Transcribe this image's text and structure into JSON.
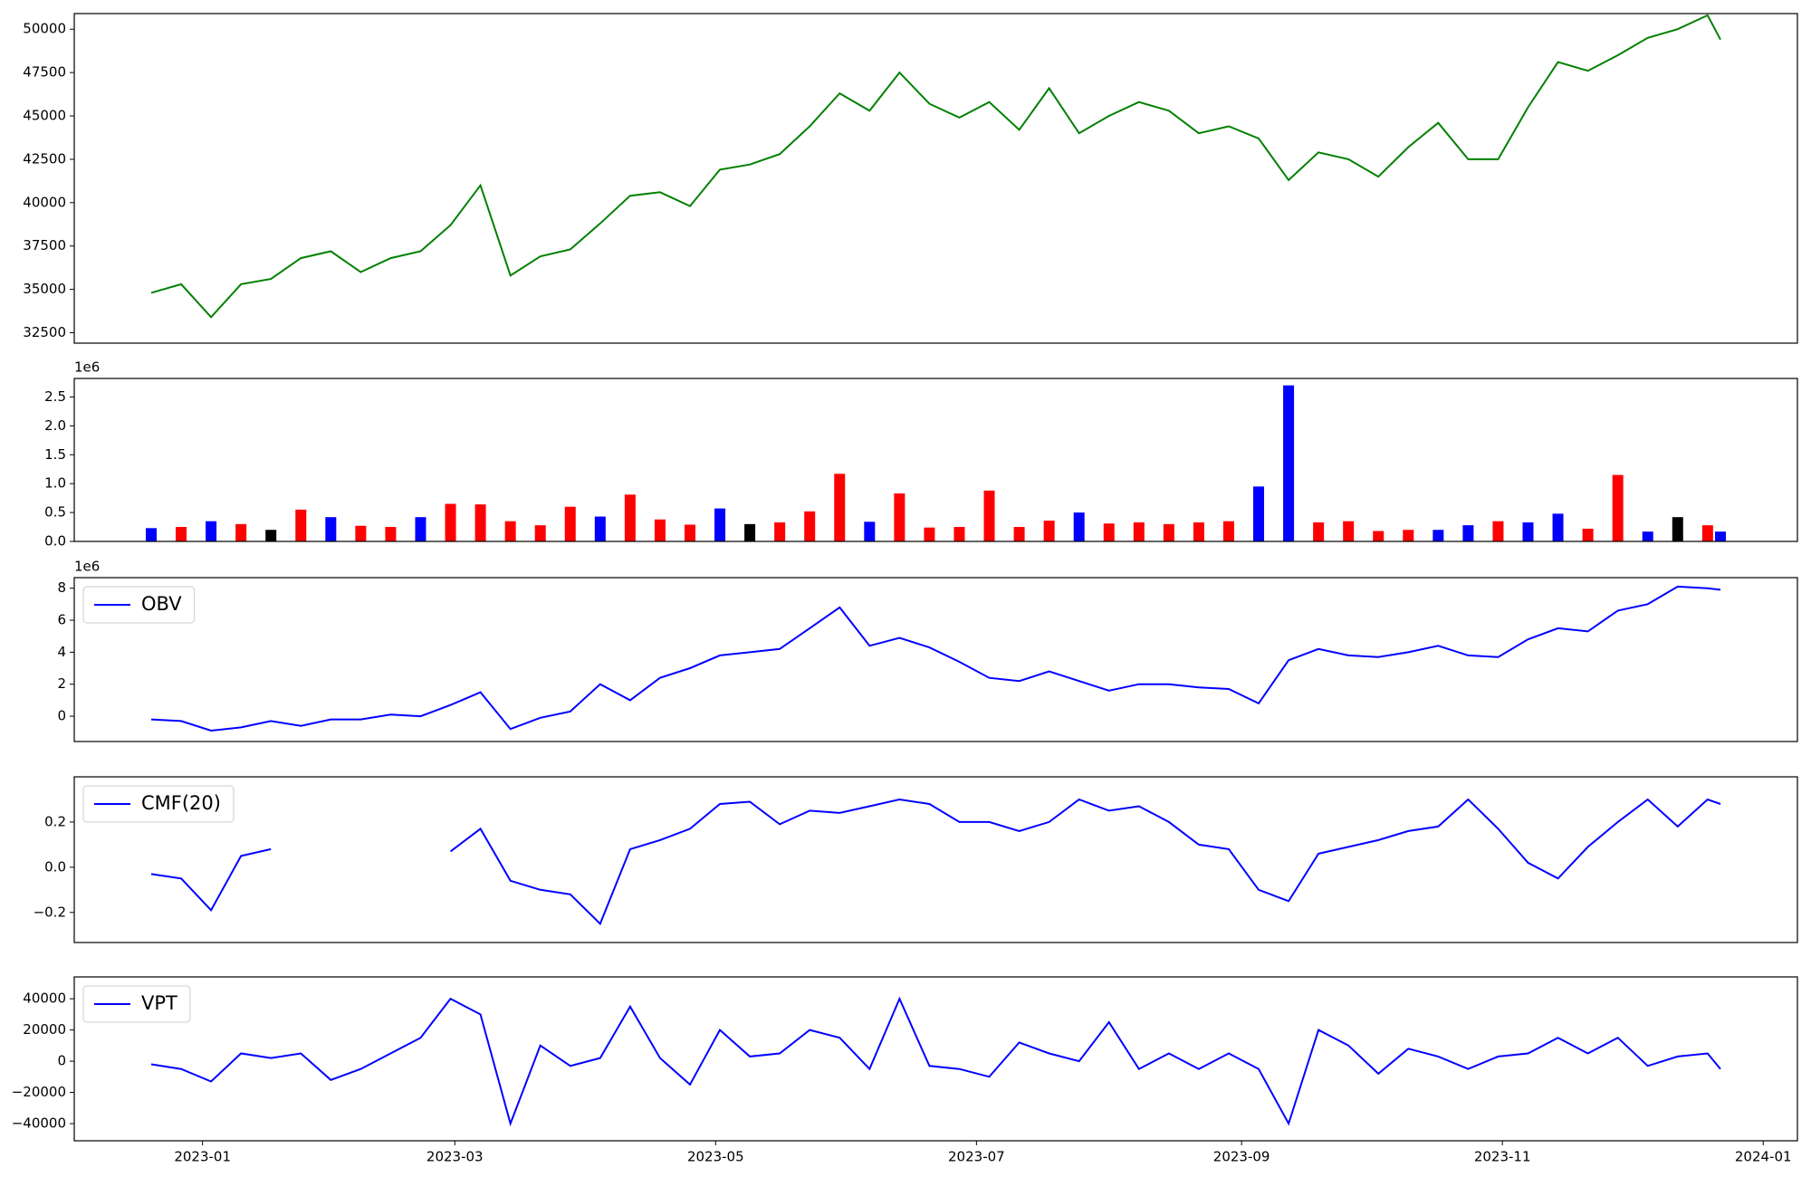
{
  "chart_data": [
    {
      "type": "line",
      "xlim": [
        "2022-12-02",
        "2024-01-09"
      ],
      "ylim": [
        31900,
        50900
      ],
      "yticks": [
        32500,
        35000,
        37500,
        40000,
        42500,
        45000,
        47500,
        50000
      ],
      "x": [
        "2022-12-20",
        "2022-12-27",
        "2023-01-03",
        "2023-01-10",
        "2023-01-17",
        "2023-01-24",
        "2023-01-31",
        "2023-02-07",
        "2023-02-14",
        "2023-02-21",
        "2023-02-28",
        "2023-03-07",
        "2023-03-14",
        "2023-03-21",
        "2023-03-28",
        "2023-04-04",
        "2023-04-11",
        "2023-04-18",
        "2023-04-25",
        "2023-05-02",
        "2023-05-09",
        "2023-05-16",
        "2023-05-23",
        "2023-05-30",
        "2023-06-06",
        "2023-06-13",
        "2023-06-20",
        "2023-06-27",
        "2023-07-04",
        "2023-07-11",
        "2023-07-18",
        "2023-07-25",
        "2023-08-01",
        "2023-08-08",
        "2023-08-15",
        "2023-08-22",
        "2023-08-29",
        "2023-09-05",
        "2023-09-12",
        "2023-09-19",
        "2023-09-26",
        "2023-10-03",
        "2023-10-10",
        "2023-10-17",
        "2023-10-24",
        "2023-10-31",
        "2023-11-07",
        "2023-11-14",
        "2023-11-21",
        "2023-11-28",
        "2023-12-05",
        "2023-12-12",
        "2023-12-19",
        "2023-12-22"
      ],
      "series": [
        {
          "color": "#008000",
          "values": [
            34800,
            35300,
            33400,
            35300,
            35600,
            36800,
            37200,
            36000,
            36800,
            37200,
            38700,
            41000,
            35800,
            36900,
            37300,
            38800,
            40400,
            40600,
            39800,
            41900,
            42200,
            42800,
            44400,
            46300,
            45300,
            47500,
            45700,
            44900,
            45800,
            44200,
            46600,
            44000,
            45000,
            45800,
            45300,
            44000,
            44400,
            43700,
            41300,
            42900,
            42500,
            41500,
            43200,
            44600,
            42500,
            42500,
            45500,
            48100,
            47600,
            48500,
            49500,
            50000,
            50800,
            49400
          ]
        }
      ]
    },
    {
      "type": "bar",
      "xlim": [
        "2022-12-02",
        "2024-01-09"
      ],
      "ylim": [
        0,
        2820000
      ],
      "y_offset_label": "1e6",
      "yticks": [
        {
          "value": 0,
          "label": "0.0"
        },
        {
          "value": 500000,
          "label": "0.5"
        },
        {
          "value": 1000000,
          "label": "1.0"
        },
        {
          "value": 1500000,
          "label": "1.5"
        },
        {
          "value": 2000000,
          "label": "2.0"
        },
        {
          "value": 2500000,
          "label": "2.5"
        }
      ],
      "x": [
        "2022-12-20",
        "2022-12-27",
        "2023-01-03",
        "2023-01-10",
        "2023-01-17",
        "2023-01-24",
        "2023-01-31",
        "2023-02-07",
        "2023-02-14",
        "2023-02-21",
        "2023-02-28",
        "2023-03-07",
        "2023-03-14",
        "2023-03-21",
        "2023-03-28",
        "2023-04-04",
        "2023-04-11",
        "2023-04-18",
        "2023-04-25",
        "2023-05-02",
        "2023-05-09",
        "2023-05-16",
        "2023-05-23",
        "2023-05-30",
        "2023-06-06",
        "2023-06-13",
        "2023-06-20",
        "2023-06-27",
        "2023-07-04",
        "2023-07-11",
        "2023-07-18",
        "2023-07-25",
        "2023-08-01",
        "2023-08-08",
        "2023-08-15",
        "2023-08-22",
        "2023-08-29",
        "2023-09-05",
        "2023-09-12",
        "2023-09-19",
        "2023-09-26",
        "2023-10-03",
        "2023-10-10",
        "2023-10-17",
        "2023-10-24",
        "2023-10-31",
        "2023-11-07",
        "2023-11-14",
        "2023-11-21",
        "2023-11-28",
        "2023-12-05",
        "2023-12-12",
        "2023-12-19",
        "2023-12-22"
      ],
      "values": [
        230000,
        250000,
        350000,
        300000,
        200000,
        550000,
        420000,
        270000,
        250000,
        420000,
        650000,
        640000,
        350000,
        280000,
        600000,
        430000,
        810000,
        380000,
        290000,
        570000,
        300000,
        330000,
        520000,
        1170000,
        340000,
        830000,
        240000,
        250000,
        880000,
        250000,
        360000,
        500000,
        310000,
        330000,
        300000,
        330000,
        350000,
        950000,
        2700000,
        330000,
        350000,
        180000,
        200000,
        200000,
        280000,
        350000,
        330000,
        480000,
        220000,
        1150000,
        170000,
        420000,
        280000,
        170000
      ],
      "colors": [
        "blue",
        "red",
        "blue",
        "red",
        "black",
        "red",
        "blue",
        "red",
        "red",
        "blue",
        "red",
        "red",
        "red",
        "red",
        "red",
        "blue",
        "red",
        "red",
        "red",
        "blue",
        "black",
        "red",
        "red",
        "red",
        "blue",
        "red",
        "red",
        "red",
        "red",
        "red",
        "red",
        "blue",
        "red",
        "red",
        "red",
        "red",
        "red",
        "blue",
        "blue",
        "red",
        "red",
        "red",
        "red",
        "blue",
        "blue",
        "red",
        "blue",
        "blue",
        "red",
        "red",
        "blue",
        "black",
        "red",
        "blue"
      ]
    },
    {
      "type": "line",
      "xlim": [
        "2022-12-02",
        "2024-01-09"
      ],
      "ylim": [
        -1580000,
        8660000
      ],
      "y_offset_label": "1e6",
      "legend": "upper left",
      "yticks": [
        {
          "value": 0,
          "label": "0"
        },
        {
          "value": 2000000,
          "label": "2"
        },
        {
          "value": 4000000,
          "label": "4"
        },
        {
          "value": 6000000,
          "label": "6"
        },
        {
          "value": 8000000,
          "label": "8"
        }
      ],
      "x": [
        "2022-12-20",
        "2022-12-27",
        "2023-01-03",
        "2023-01-10",
        "2023-01-17",
        "2023-01-24",
        "2023-01-31",
        "2023-02-07",
        "2023-02-14",
        "2023-02-21",
        "2023-02-28",
        "2023-03-07",
        "2023-03-14",
        "2023-03-21",
        "2023-03-28",
        "2023-04-04",
        "2023-04-11",
        "2023-04-18",
        "2023-04-25",
        "2023-05-02",
        "2023-05-09",
        "2023-05-16",
        "2023-05-23",
        "2023-05-30",
        "2023-06-06",
        "2023-06-13",
        "2023-06-20",
        "2023-06-27",
        "2023-07-04",
        "2023-07-11",
        "2023-07-18",
        "2023-07-25",
        "2023-08-01",
        "2023-08-08",
        "2023-08-15",
        "2023-08-22",
        "2023-08-29",
        "2023-09-05",
        "2023-09-12",
        "2023-09-19",
        "2023-09-26",
        "2023-10-03",
        "2023-10-10",
        "2023-10-17",
        "2023-10-24",
        "2023-10-31",
        "2023-11-07",
        "2023-11-14",
        "2023-11-21",
        "2023-11-28",
        "2023-12-05",
        "2023-12-12",
        "2023-12-19",
        "2023-12-22"
      ],
      "series": [
        {
          "name": "OBV",
          "color": "#0000ff",
          "values": [
            -200000,
            -300000,
            -900000,
            -700000,
            -300000,
            -600000,
            -200000,
            -200000,
            100000,
            0,
            700000,
            1500000,
            -800000,
            -100000,
            300000,
            2000000,
            1000000,
            2400000,
            3000000,
            3800000,
            4000000,
            4200000,
            5500000,
            6800000,
            4400000,
            4900000,
            4300000,
            3400000,
            2400000,
            2200000,
            2800000,
            2200000,
            1600000,
            2000000,
            2000000,
            1800000,
            1700000,
            800000,
            3500000,
            4200000,
            3800000,
            3700000,
            4000000,
            4400000,
            3800000,
            3700000,
            4800000,
            5500000,
            5300000,
            6600000,
            7000000,
            8100000,
            8000000,
            7900000
          ]
        }
      ]
    },
    {
      "type": "line",
      "xlim": [
        "2022-12-02",
        "2024-01-09"
      ],
      "ylim": [
        -0.333,
        0.4
      ],
      "legend": "upper left",
      "yticks": [
        {
          "value": -0.2,
          "label": "−0.2"
        },
        {
          "value": 0,
          "label": "0.0"
        },
        {
          "value": 0.2,
          "label": "0.2"
        }
      ],
      "x": [
        "2022-12-20",
        "2022-12-27",
        "2023-01-03",
        "2023-01-10",
        "2023-01-17",
        "2023-01-24",
        "2023-01-31",
        "2023-02-07",
        "2023-02-14",
        "2023-02-21",
        "2023-02-28",
        "2023-03-07",
        "2023-03-14",
        "2023-03-21",
        "2023-03-28",
        "2023-04-04",
        "2023-04-11",
        "2023-04-18",
        "2023-04-25",
        "2023-05-02",
        "2023-05-09",
        "2023-05-16",
        "2023-05-23",
        "2023-05-30",
        "2023-06-06",
        "2023-06-13",
        "2023-06-20",
        "2023-06-27",
        "2023-07-04",
        "2023-07-11",
        "2023-07-18",
        "2023-07-25",
        "2023-08-01",
        "2023-08-08",
        "2023-08-15",
        "2023-08-22",
        "2023-08-29",
        "2023-09-05",
        "2023-09-12",
        "2023-09-19",
        "2023-09-26",
        "2023-10-03",
        "2023-10-10",
        "2023-10-17",
        "2023-10-24",
        "2023-10-31",
        "2023-11-07",
        "2023-11-14",
        "2023-11-21",
        "2023-11-28",
        "2023-12-05",
        "2023-12-12",
        "2023-12-19",
        "2023-12-22"
      ],
      "series": [
        {
          "name": "CMF(20)",
          "color": "#0000ff",
          "values": [
            -0.03,
            -0.05,
            -0.19,
            0.05,
            0.08,
            null,
            null,
            null,
            null,
            null,
            0.07,
            0.17,
            -0.06,
            -0.1,
            -0.12,
            -0.25,
            0.08,
            0.12,
            0.17,
            0.28,
            0.29,
            0.19,
            0.25,
            0.24,
            0.27,
            0.3,
            0.28,
            0.2,
            0.2,
            0.16,
            0.2,
            0.3,
            0.25,
            0.27,
            0.2,
            0.1,
            0.08,
            -0.1,
            -0.15,
            0.06,
            0.09,
            0.12,
            0.16,
            0.18,
            0.3,
            0.17,
            0.02,
            -0.05,
            0.09,
            0.2,
            0.3,
            0.18,
            0.3,
            0.28
          ]
        }
      ]
    },
    {
      "type": "line",
      "xlim": [
        "2022-12-02",
        "2024-01-09"
      ],
      "ylim": [
        -51000,
        54000
      ],
      "legend": "upper left",
      "yticks": [
        {
          "value": -40000,
          "label": "−40000"
        },
        {
          "value": -20000,
          "label": "−20000"
        },
        0,
        20000,
        40000
      ],
      "xticks": [
        "2023-01",
        "2023-03",
        "2023-05",
        "2023-07",
        "2023-09",
        "2023-11",
        "2024-01"
      ],
      "x": [
        "2022-12-20",
        "2022-12-27",
        "2023-01-03",
        "2023-01-10",
        "2023-01-17",
        "2023-01-24",
        "2023-01-31",
        "2023-02-07",
        "2023-02-14",
        "2023-02-21",
        "2023-02-28",
        "2023-03-07",
        "2023-03-14",
        "2023-03-21",
        "2023-03-28",
        "2023-04-04",
        "2023-04-11",
        "2023-04-18",
        "2023-04-25",
        "2023-05-02",
        "2023-05-09",
        "2023-05-16",
        "2023-05-23",
        "2023-05-30",
        "2023-06-06",
        "2023-06-13",
        "2023-06-20",
        "2023-06-27",
        "2023-07-04",
        "2023-07-11",
        "2023-07-18",
        "2023-07-25",
        "2023-08-01",
        "2023-08-08",
        "2023-08-15",
        "2023-08-22",
        "2023-08-29",
        "2023-09-05",
        "2023-09-12",
        "2023-09-19",
        "2023-09-26",
        "2023-10-03",
        "2023-10-10",
        "2023-10-17",
        "2023-10-24",
        "2023-10-31",
        "2023-11-07",
        "2023-11-14",
        "2023-11-21",
        "2023-11-28",
        "2023-12-05",
        "2023-12-12",
        "2023-12-19",
        "2023-12-22"
      ],
      "series": [
        {
          "name": "VPT",
          "color": "#0000ff",
          "values": [
            -2000,
            -5000,
            -13000,
            5000,
            2000,
            5000,
            -12000,
            -5000,
            5000,
            15000,
            40000,
            30000,
            -40000,
            10000,
            -3000,
            2000,
            35000,
            2000,
            -15000,
            20000,
            3000,
            5000,
            20000,
            15000,
            -5000,
            40000,
            -3000,
            -5000,
            -10000,
            12000,
            5000,
            0,
            25000,
            -5000,
            5000,
            -5000,
            5000,
            -5000,
            -40000,
            20000,
            10000,
            -8000,
            8000,
            3000,
            -5000,
            3000,
            5000,
            15000,
            5000,
            15000,
            -3000,
            3000,
            5000,
            -5000
          ]
        }
      ]
    }
  ]
}
